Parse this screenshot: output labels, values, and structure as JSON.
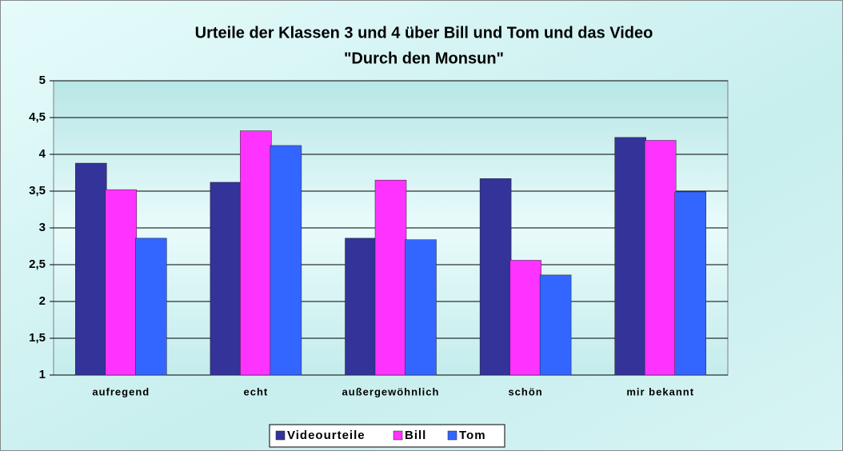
{
  "chart_data": {
    "type": "bar",
    "title": [
      "Urteile der Klassen 3 und 4 über Bill und Tom und das Video",
      "\"Durch den Monsun\""
    ],
    "categories": [
      "aufregend",
      "echt",
      "außergewöhnlich",
      "schön",
      "mir bekannt"
    ],
    "series": [
      {
        "name": "Videourteile",
        "color": "#333399",
        "values": [
          3.88,
          3.62,
          2.86,
          3.67,
          4.23
        ]
      },
      {
        "name": "Bill",
        "color": "#ff33ff",
        "values": [
          3.52,
          4.32,
          3.65,
          2.56,
          4.19
        ]
      },
      {
        "name": "Tom",
        "color": "#3366ff",
        "values": [
          2.86,
          4.12,
          2.84,
          2.36,
          3.49
        ]
      }
    ],
    "ylim": [
      1,
      5
    ],
    "yticks": [
      1,
      {
        "value": 1.5,
        "label": "1,5"
      },
      2,
      {
        "value": 2.5,
        "label": "2,5"
      },
      3,
      {
        "value": 3.5,
        "label": "3,5"
      },
      4,
      {
        "value": 4.5,
        "label": "4,5"
      },
      5
    ],
    "grid": true,
    "legend": "bottom"
  }
}
